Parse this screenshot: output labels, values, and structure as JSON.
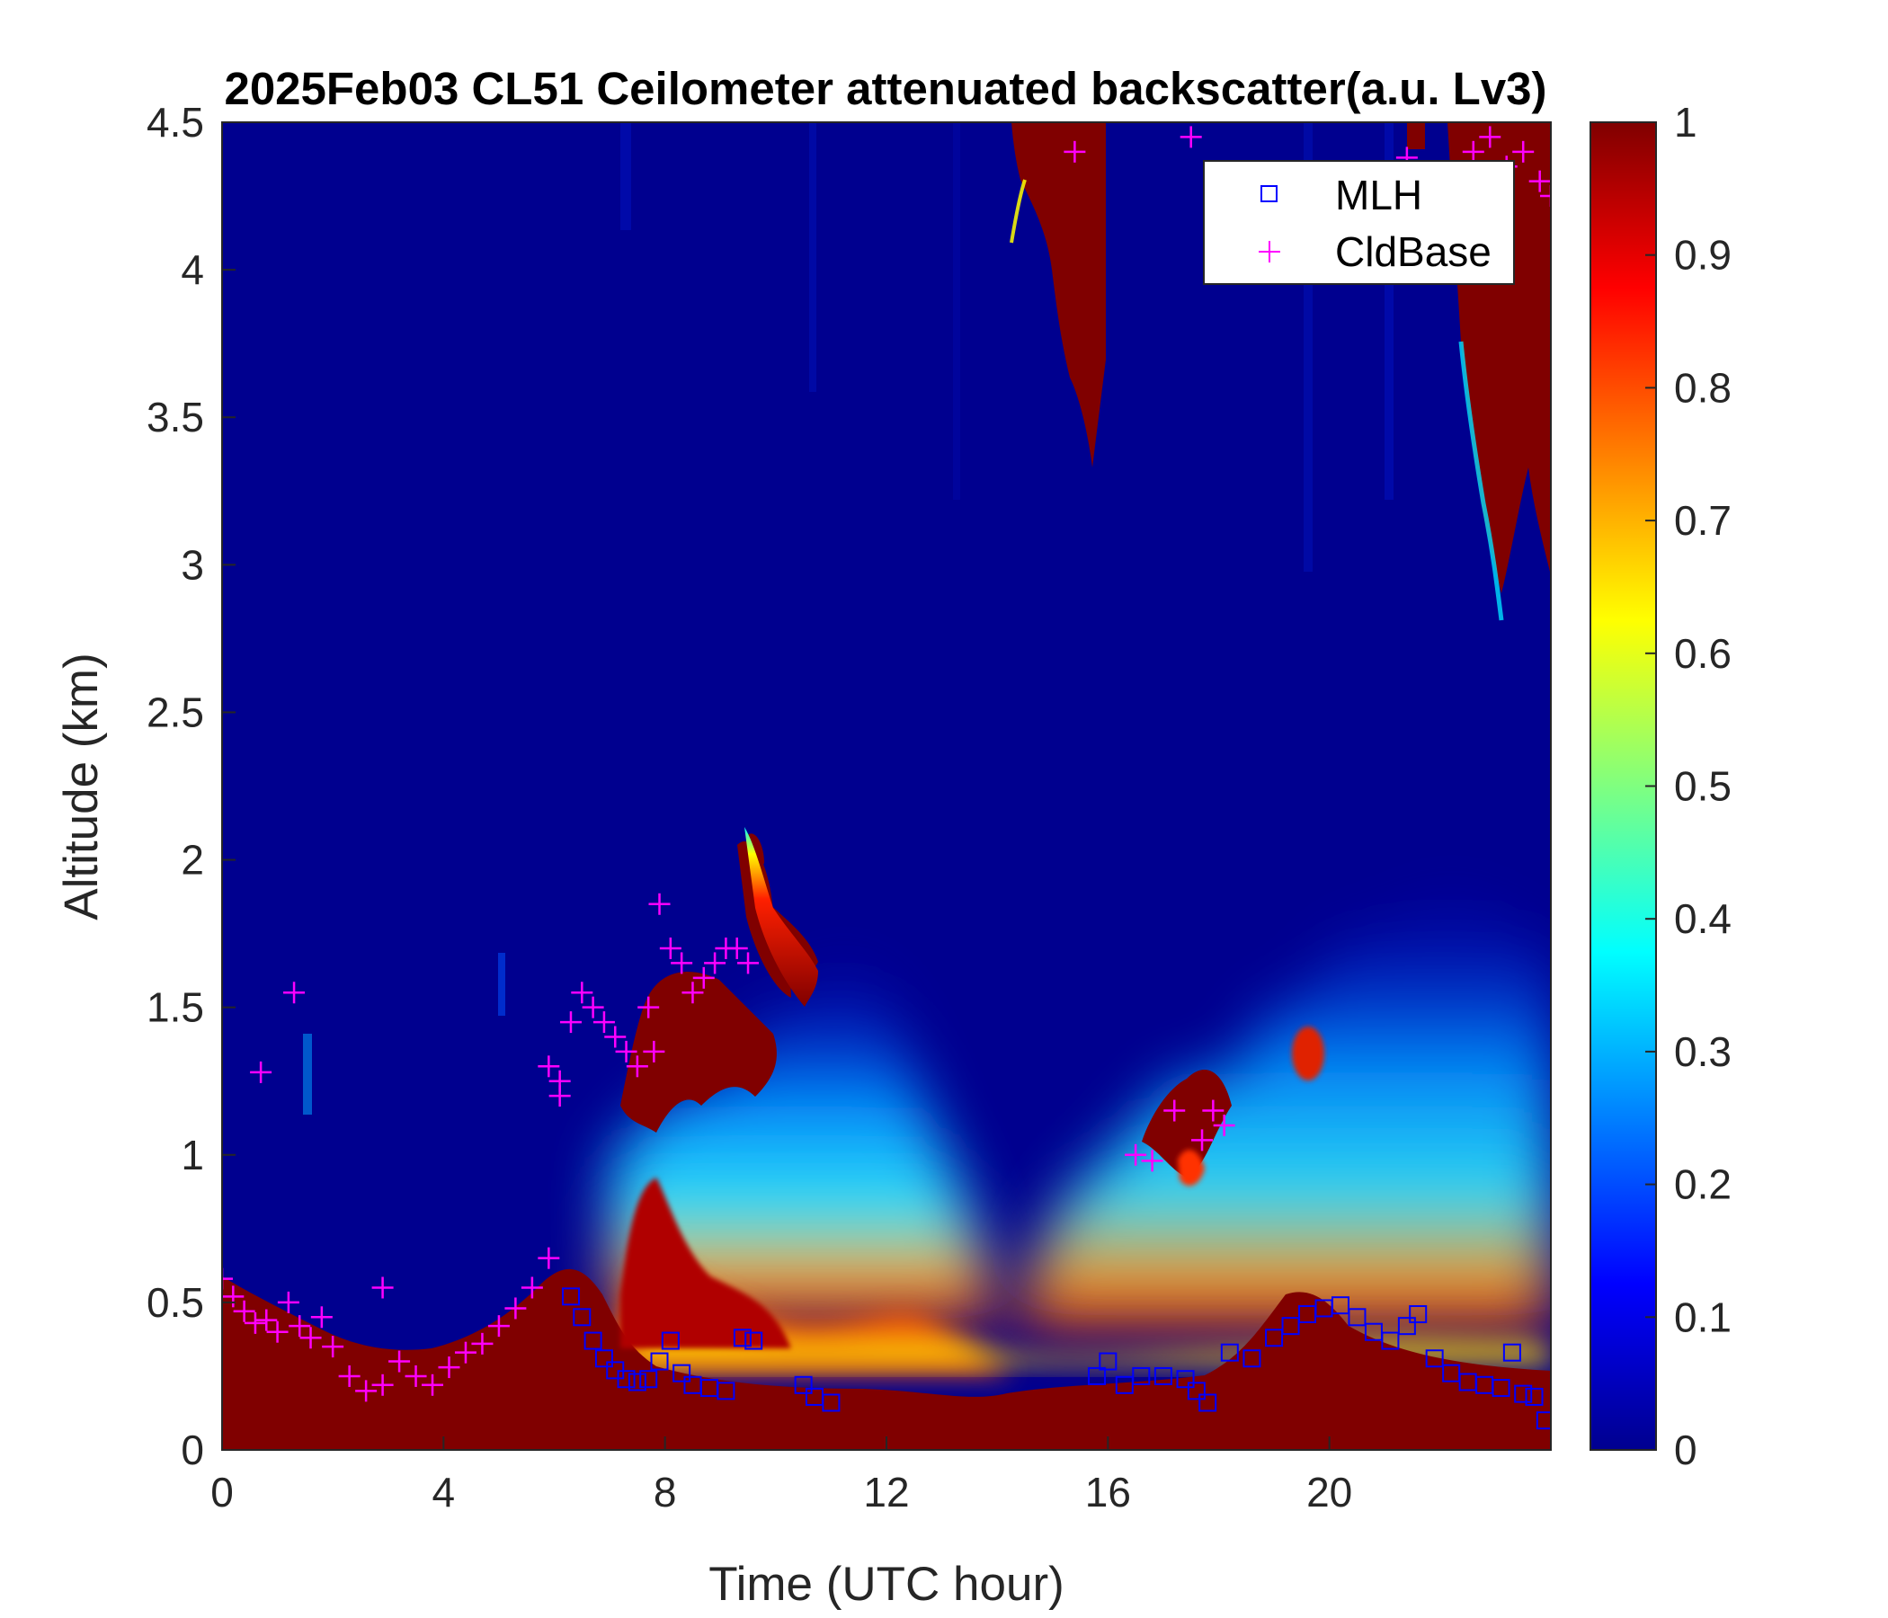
{
  "chart_data": {
    "type": "heatmap",
    "title": "2025Feb03 CL51 Ceilometer attenuated backscatter(a.u. Lv3)",
    "xlabel": "Time (UTC hour)",
    "ylabel": "Altitude (km)",
    "xlim": [
      0,
      24
    ],
    "ylim": [
      0,
      4.5
    ],
    "xticks": [
      "0",
      "4",
      "8",
      "12",
      "16",
      "20"
    ],
    "yticks": [
      "0",
      "0.5",
      "1",
      "1.5",
      "2",
      "2.5",
      "3",
      "3.5",
      "4",
      "4.5"
    ],
    "colorbar": {
      "colormap": "jet",
      "range": [
        0,
        1
      ],
      "ticks": [
        "0",
        "0.1",
        "0.2",
        "0.3",
        "0.4",
        "0.5",
        "0.6",
        "0.7",
        "0.8",
        "0.9",
        "1"
      ]
    },
    "legend": {
      "position": "top-right",
      "entries": [
        {
          "name": "MLH",
          "marker": "square",
          "color": "#0000ff"
        },
        {
          "name": "CldBase",
          "marker": "plus",
          "color": "#ff00ff"
        }
      ]
    },
    "series": [
      {
        "name": "MLH",
        "x": [
          6.3,
          6.5,
          6.7,
          6.9,
          7.1,
          7.3,
          7.5,
          7.7,
          7.9,
          8.1,
          8.3,
          8.5,
          8.8,
          9.1,
          9.4,
          9.6,
          10.5,
          10.7,
          11.0,
          15.8,
          16.0,
          16.3,
          16.6,
          17.0,
          17.4,
          17.6,
          17.8,
          18.2,
          18.6,
          19.0,
          19.3,
          19.6,
          19.9,
          20.2,
          20.5,
          20.8,
          21.1,
          21.4,
          21.6,
          21.9,
          22.2,
          22.5,
          22.8,
          23.1,
          23.3,
          23.5,
          23.7,
          23.9
        ],
        "y": [
          0.52,
          0.45,
          0.37,
          0.31,
          0.27,
          0.24,
          0.23,
          0.24,
          0.3,
          0.37,
          0.26,
          0.22,
          0.21,
          0.2,
          0.38,
          0.37,
          0.22,
          0.18,
          0.16,
          0.25,
          0.3,
          0.22,
          0.25,
          0.25,
          0.24,
          0.2,
          0.16,
          0.33,
          0.31,
          0.38,
          0.42,
          0.46,
          0.48,
          0.49,
          0.45,
          0.4,
          0.37,
          0.42,
          0.46,
          0.31,
          0.26,
          0.23,
          0.22,
          0.21,
          0.33,
          0.19,
          0.18,
          0.1
        ]
      },
      {
        "name": "CldBase",
        "x": [
          0.0,
          0.2,
          0.4,
          0.6,
          0.8,
          1.0,
          1.2,
          1.4,
          1.6,
          1.8,
          2.0,
          2.3,
          2.6,
          2.9,
          3.2,
          3.5,
          3.8,
          4.1,
          4.4,
          4.7,
          5.0,
          5.3,
          5.6,
          5.9,
          6.1,
          6.3,
          6.5,
          6.7,
          6.9,
          7.1,
          7.3,
          7.5,
          7.7,
          7.9,
          8.1,
          8.3,
          8.5,
          8.7,
          8.9,
          9.1,
          9.3,
          9.5,
          0.7,
          1.3,
          2.9,
          5.9,
          6.1,
          7.8,
          15.4,
          16.5,
          16.8,
          17.2,
          17.7,
          17.9,
          18.1,
          17.5,
          21.4,
          22.6,
          22.9,
          23.2,
          23.5,
          23.8,
          24.0
        ],
        "y": [
          0.58,
          0.52,
          0.47,
          0.43,
          0.44,
          0.4,
          0.5,
          0.42,
          0.38,
          0.45,
          0.35,
          0.25,
          0.2,
          0.22,
          0.3,
          0.25,
          0.22,
          0.28,
          0.33,
          0.36,
          0.42,
          0.48,
          0.55,
          0.65,
          1.25,
          1.45,
          1.55,
          1.5,
          1.45,
          1.4,
          1.35,
          1.3,
          1.5,
          1.85,
          1.7,
          1.65,
          1.55,
          1.6,
          1.65,
          1.7,
          1.7,
          1.65,
          1.28,
          1.55,
          0.55,
          1.3,
          1.2,
          1.35,
          4.4,
          1.0,
          0.98,
          1.15,
          1.05,
          1.15,
          1.1,
          4.45,
          4.38,
          4.4,
          4.45,
          4.35,
          4.4,
          4.3,
          4.25
        ]
      }
    ]
  }
}
